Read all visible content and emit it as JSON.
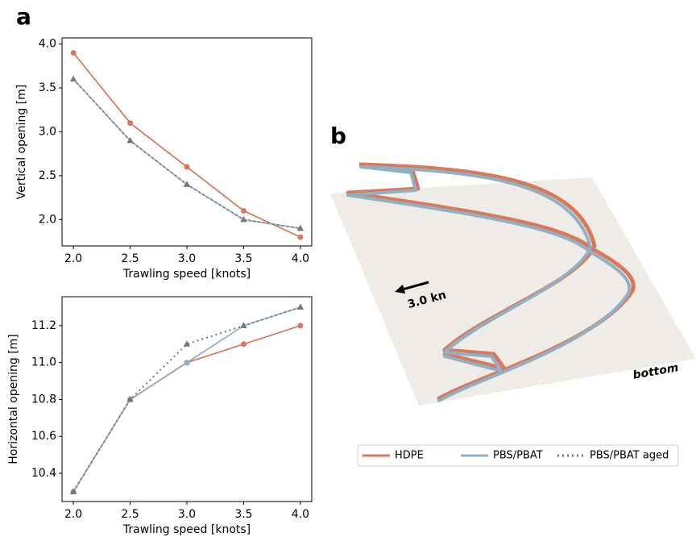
{
  "panel_labels": [
    "a",
    "b"
  ],
  "illustration": {
    "speed_label": "3.0 kn",
    "surface_label": "bottom"
  },
  "chart_data": [
    {
      "type": "line",
      "x_label": "Trawling speed [knots]",
      "y_label": "Vertical opening [m]",
      "x": [
        2.0,
        2.5,
        3.0,
        3.5,
        4.0
      ],
      "xlim": [
        1.9,
        4.1
      ],
      "xticks": [
        {
          "value": 2.0,
          "label": "2.0"
        },
        {
          "value": 2.5,
          "label": "2.5"
        },
        {
          "value": 3.0,
          "label": "3.0"
        },
        {
          "value": 3.5,
          "label": "3.5"
        },
        {
          "value": 4.0,
          "label": "4.0"
        }
      ],
      "ylim": [
        1.7,
        4.07
      ],
      "yticks": [
        {
          "value": 2.0,
          "label": "2.0"
        },
        2.5,
        {
          "value": 3.0,
          "label": "3.0"
        },
        3.5,
        {
          "value": 4.0,
          "label": "4.0"
        }
      ],
      "series": [
        {
          "name": "HDPE",
          "color": "#d9795c",
          "marker": "circle",
          "dash": "solid",
          "values": [
            3.9,
            3.1,
            2.6,
            2.1,
            1.8
          ]
        },
        {
          "name": "PBS/PBAT",
          "color": "#90b1c5",
          "marker": "triangle",
          "dash": "solid",
          "values": [
            3.6,
            2.9,
            2.4,
            2.0,
            1.9
          ]
        },
        {
          "name": "PBS/PBAT aged",
          "color": "#707880",
          "marker": "triangle",
          "dash": "dotted",
          "values": [
            3.6,
            2.9,
            2.4,
            2.0,
            1.9
          ]
        }
      ]
    },
    {
      "type": "line",
      "x_label": "Trawling speed [knots]",
      "y_label": "Horizontal opening [m]",
      "x": [
        2.0,
        2.5,
        3.0,
        3.5,
        4.0
      ],
      "xlim": [
        1.9,
        4.1
      ],
      "xticks": [
        {
          "value": 2.0,
          "label": "2.0"
        },
        {
          "value": 2.5,
          "label": "2.5"
        },
        {
          "value": 3.0,
          "label": "3.0"
        },
        {
          "value": 3.5,
          "label": "3.5"
        },
        {
          "value": 4.0,
          "label": "4.0"
        }
      ],
      "ylim": [
        10.247,
        11.357
      ],
      "yticks": [
        10.4,
        10.6,
        10.8,
        {
          "value": 11.0,
          "label": "11.0"
        },
        11.2
      ],
      "series": [
        {
          "name": "HDPE",
          "color": "#d9795c",
          "marker": "circle",
          "dash": "solid",
          "values": [
            10.3,
            10.8,
            11.0,
            11.1,
            11.2
          ]
        },
        {
          "name": "PBS/PBAT",
          "color": "#90b1c5",
          "marker": "triangle",
          "dash": "solid",
          "values": [
            10.3,
            10.8,
            11.0,
            11.2,
            11.3
          ]
        },
        {
          "name": "PBS/PBAT aged",
          "color": "#707880",
          "marker": "triangle",
          "dash": "dotted",
          "values": [
            10.3,
            10.8,
            11.1,
            11.2,
            11.3
          ]
        }
      ]
    }
  ]
}
